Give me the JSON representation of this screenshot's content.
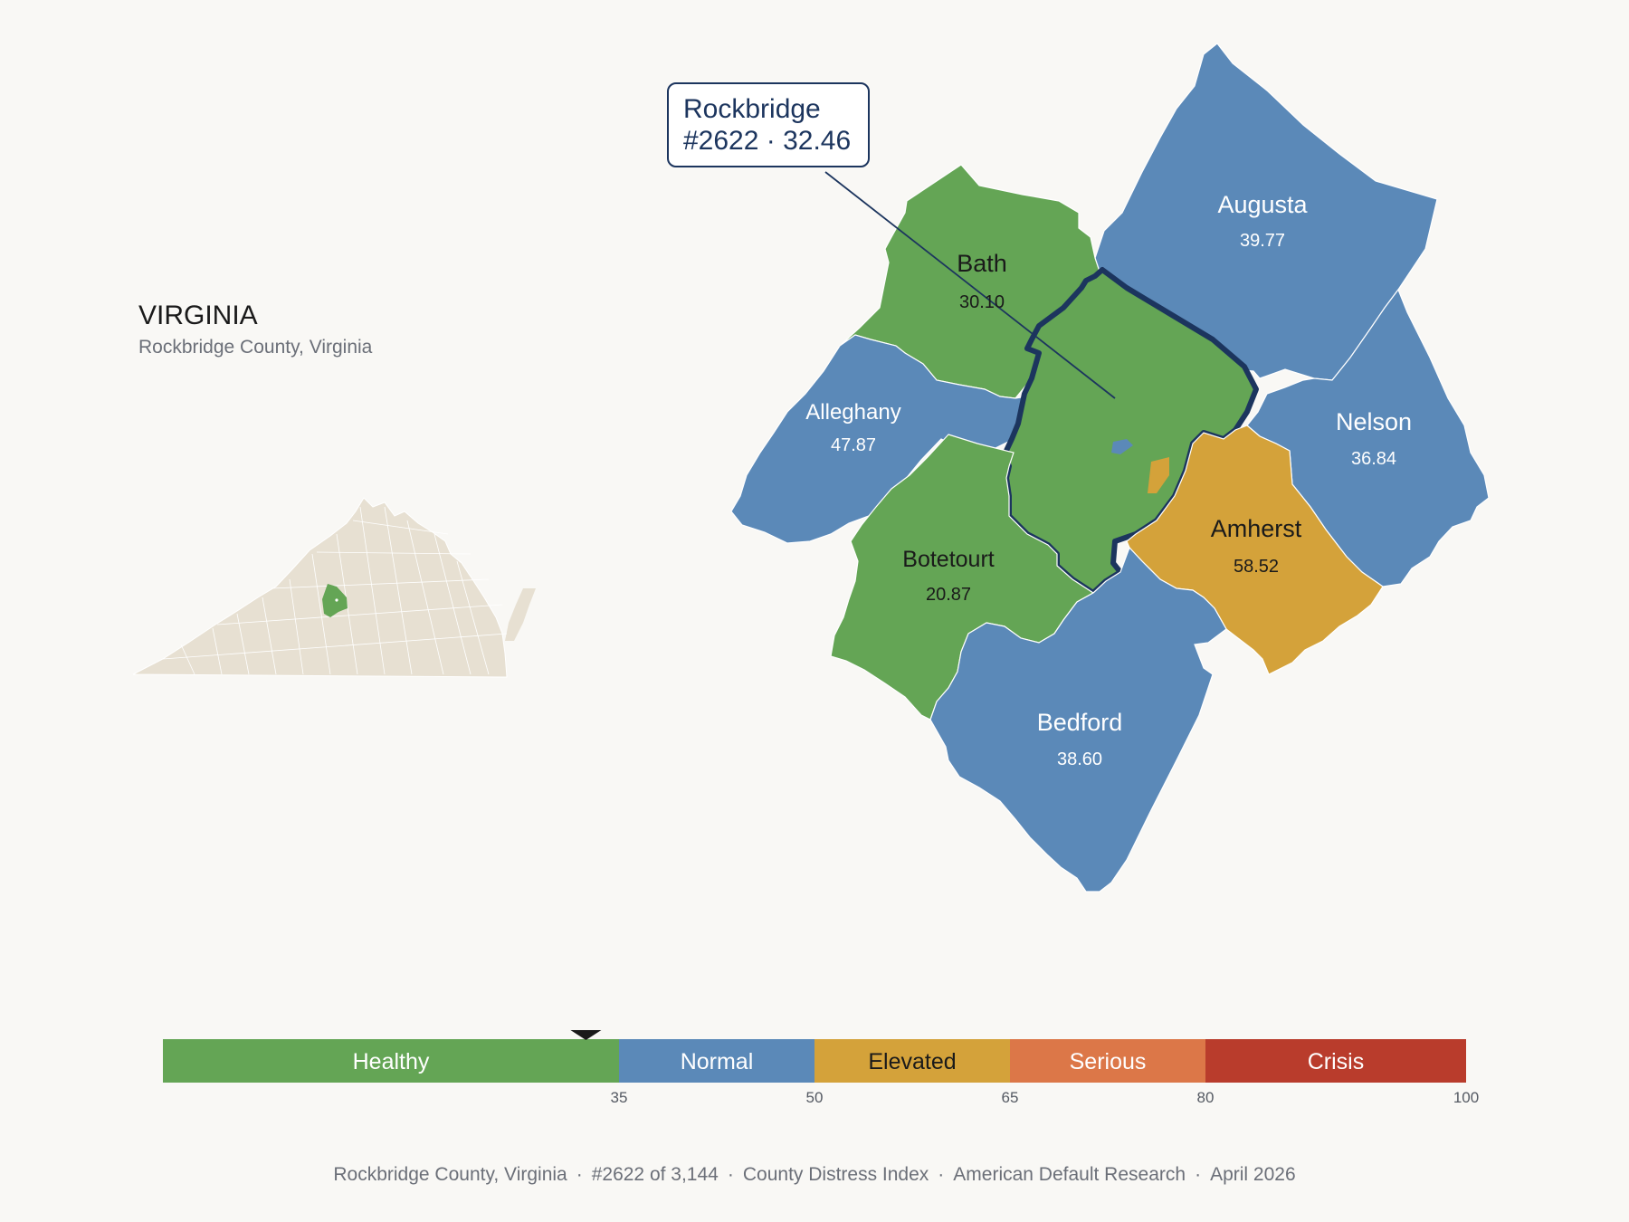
{
  "state": {
    "title": "VIRGINIA",
    "subtitle": "Rockbridge County, Virginia"
  },
  "callout": {
    "name": "Rockbridge",
    "rank_value": "#2622 · 32.46"
  },
  "counties": [
    {
      "name": "Augusta",
      "value": "39.77",
      "category": "Normal"
    },
    {
      "name": "Bath",
      "value": "30.10",
      "category": "Healthy"
    },
    {
      "name": "Alleghany",
      "value": "47.87",
      "category": "Normal"
    },
    {
      "name": "Nelson",
      "value": "36.84",
      "category": "Normal"
    },
    {
      "name": "Amherst",
      "value": "58.52",
      "category": "Elevated"
    },
    {
      "name": "Botetourt",
      "value": "20.87",
      "category": "Healthy"
    },
    {
      "name": "Bedford",
      "value": "38.60",
      "category": "Normal"
    },
    {
      "name": "Rockbridge",
      "value": "32.46",
      "category": "Healthy"
    }
  ],
  "legend": {
    "bands": [
      {
        "label": "Healthy",
        "from": 0,
        "to": 35,
        "color": "#64a555"
      },
      {
        "label": "Normal",
        "from": 35,
        "to": 50,
        "color": "#5b89b8"
      },
      {
        "label": "Elevated",
        "from": 50,
        "to": 65,
        "color": "#d4a23a"
      },
      {
        "label": "Serious",
        "from": 65,
        "to": 80,
        "color": "#dc7748"
      },
      {
        "label": "Crisis",
        "from": 80,
        "to": 100,
        "color": "#b93c2c"
      }
    ],
    "ticks": [
      "35",
      "50",
      "65",
      "80",
      "100"
    ],
    "marker_value": 32.46
  },
  "colors": {
    "Healthy": "#64a555",
    "Normal": "#5b89b8",
    "Elevated": "#d4a23a",
    "Serious": "#dc7748",
    "Crisis": "#b93c2c",
    "outline": "#1c355e",
    "inset_state": "#e7e0d2",
    "background": "#f9f8f5"
  },
  "footer": {
    "county": "Rockbridge County, Virginia",
    "rank": "#2622 of 3,144",
    "index": "County Distress Index",
    "source": "American Default Research",
    "date": "April 2026"
  }
}
